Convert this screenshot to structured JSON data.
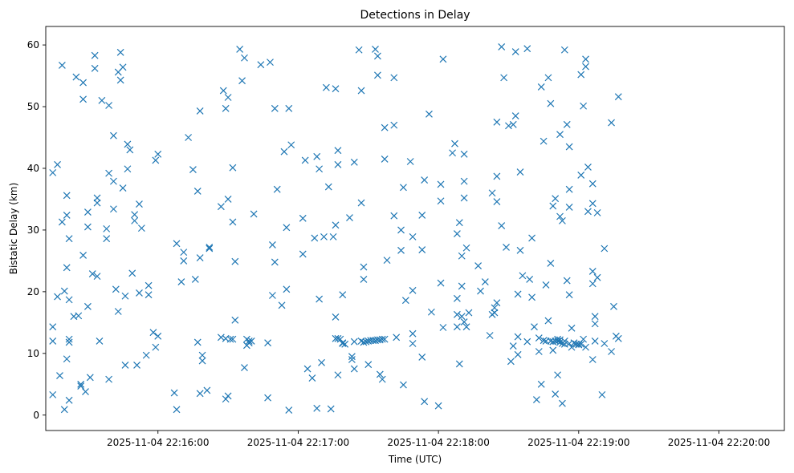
{
  "chart_data": {
    "type": "scatter",
    "title": "Detections in Delay",
    "xlabel": "Time (UTC)",
    "ylabel": "Bistatic Delay (km)",
    "x_start": "2025-11-04T22:15:15",
    "xlim": [
      "2025-11-04T22:15:12",
      "2025-11-04T22:20:28"
    ],
    "ylim": [
      -2.5,
      63.0
    ],
    "x_ticks": [
      "2025-11-04 22:16:00",
      "2025-11-04 22:17:00",
      "2025-11-04 22:18:00",
      "2025-11-04 22:19:00",
      "2025-11-04 22:20:00"
    ],
    "y_ticks": [
      0,
      10,
      20,
      30,
      40,
      50,
      60
    ],
    "marker": "x",
    "color": "#1f77b4",
    "grid": false,
    "points": [
      [
        0.0,
        3.3
      ],
      [
        0.0,
        12.0
      ],
      [
        0.0,
        14.3
      ],
      [
        0.0,
        39.3
      ],
      [
        2.0,
        40.6
      ],
      [
        2.0,
        19.2
      ],
      [
        3.0,
        6.4
      ],
      [
        4.0,
        56.7
      ],
      [
        4.0,
        31.3
      ],
      [
        5.0,
        20.1
      ],
      [
        5.0,
        0.9
      ],
      [
        6.0,
        35.6
      ],
      [
        6.0,
        32.4
      ],
      [
        6.0,
        23.9
      ],
      [
        6.0,
        9.1
      ],
      [
        7.0,
        12.3
      ],
      [
        7.0,
        11.8
      ],
      [
        7.0,
        2.4
      ],
      [
        7.0,
        28.6
      ],
      [
        7.0,
        18.7
      ],
      [
        9.0,
        16.0
      ],
      [
        10.0,
        54.8
      ],
      [
        11.0,
        16.1
      ],
      [
        12.0,
        4.7
      ],
      [
        12.0,
        5.0
      ],
      [
        13.0,
        53.9
      ],
      [
        13.0,
        51.2
      ],
      [
        13.0,
        25.9
      ],
      [
        14.0,
        3.8
      ],
      [
        15.0,
        32.9
      ],
      [
        15.0,
        30.5
      ],
      [
        15.0,
        17.6
      ],
      [
        16.0,
        6.1
      ],
      [
        17.0,
        22.9
      ],
      [
        18.0,
        58.3
      ],
      [
        18.0,
        56.2
      ],
      [
        19.0,
        35.2
      ],
      [
        19.0,
        34.4
      ],
      [
        19.0,
        22.5
      ],
      [
        20.0,
        12.0
      ],
      [
        21.0,
        51.0
      ],
      [
        23.0,
        30.2
      ],
      [
        23.0,
        28.6
      ],
      [
        24.0,
        39.2
      ],
      [
        24.0,
        50.2
      ],
      [
        24.0,
        5.8
      ],
      [
        26.0,
        45.3
      ],
      [
        26.0,
        37.9
      ],
      [
        27.0,
        20.4
      ],
      [
        26.0,
        33.4
      ],
      [
        28.0,
        55.6
      ],
      [
        28.0,
        16.8
      ],
      [
        29.0,
        54.3
      ],
      [
        30.0,
        56.4
      ],
      [
        29.0,
        58.8
      ],
      [
        30.0,
        36.8
      ],
      [
        31.0,
        19.3
      ],
      [
        31.0,
        8.1
      ],
      [
        32.0,
        39.9
      ],
      [
        32.0,
        43.9
      ],
      [
        33.0,
        43.0
      ],
      [
        34.0,
        23.0
      ],
      [
        35.0,
        31.5
      ],
      [
        35.0,
        32.5
      ],
      [
        36.0,
        8.1
      ],
      [
        37.0,
        34.2
      ],
      [
        37.0,
        19.8
      ],
      [
        38.0,
        30.3
      ],
      [
        40.0,
        9.7
      ],
      [
        41.0,
        21.0
      ],
      [
        41.0,
        19.5
      ],
      [
        43.0,
        13.4
      ],
      [
        44.0,
        41.3
      ],
      [
        44.0,
        11.0
      ],
      [
        45.0,
        42.3
      ],
      [
        45.0,
        12.8
      ],
      [
        52.0,
        3.6
      ],
      [
        53.0,
        0.9
      ],
      [
        53.0,
        27.8
      ],
      [
        55.0,
        21.6
      ],
      [
        56.0,
        26.4
      ],
      [
        56.0,
        25.0
      ],
      [
        58.0,
        45.0
      ],
      [
        60.0,
        39.8
      ],
      [
        61.0,
        22.0
      ],
      [
        62.0,
        36.3
      ],
      [
        62.0,
        11.8
      ],
      [
        63.0,
        49.3
      ],
      [
        63.0,
        25.5
      ],
      [
        63.0,
        3.5
      ],
      [
        64.0,
        8.8
      ],
      [
        64.0,
        9.7
      ],
      [
        66.0,
        4.0
      ],
      [
        67.0,
        27.0
      ],
      [
        67.0,
        27.2
      ],
      [
        72.0,
        33.8
      ],
      [
        72.0,
        12.6
      ],
      [
        73.0,
        52.6
      ],
      [
        74.0,
        49.7
      ],
      [
        74.0,
        12.4
      ],
      [
        74.0,
        2.6
      ],
      [
        75.0,
        51.5
      ],
      [
        75.0,
        35.0
      ],
      [
        75.0,
        3.1
      ],
      [
        76.0,
        12.3
      ],
      [
        77.0,
        12.3
      ],
      [
        77.0,
        40.1
      ],
      [
        77.0,
        31.3
      ],
      [
        78.0,
        24.9
      ],
      [
        78.0,
        15.4
      ],
      [
        80.0,
        59.3
      ],
      [
        81.0,
        54.2
      ],
      [
        82.0,
        57.9
      ],
      [
        82.0,
        7.7
      ],
      [
        83.0,
        12.3
      ],
      [
        83.0,
        11.3
      ],
      [
        84.0,
        12.0
      ],
      [
        84.0,
        11.7
      ],
      [
        85.0,
        12.0
      ],
      [
        86.0,
        32.6
      ],
      [
        89.0,
        56.8
      ],
      [
        92.0,
        11.7
      ],
      [
        92.0,
        2.8
      ],
      [
        93.0,
        57.2
      ],
      [
        94.0,
        27.6
      ],
      [
        94.0,
        19.4
      ],
      [
        95.0,
        49.7
      ],
      [
        95.0,
        24.8
      ],
      [
        96.0,
        36.6
      ],
      [
        98.0,
        17.8
      ],
      [
        99.0,
        42.7
      ],
      [
        100.0,
        20.4
      ],
      [
        100.0,
        30.4
      ],
      [
        101.0,
        0.8
      ],
      [
        101.0,
        49.7
      ],
      [
        102.0,
        43.8
      ],
      [
        107.0,
        26.1
      ],
      [
        107.0,
        31.9
      ],
      [
        108.0,
        41.3
      ],
      [
        109.0,
        7.5
      ],
      [
        111.0,
        6.0
      ],
      [
        112.0,
        28.7
      ],
      [
        113.0,
        1.1
      ],
      [
        113.0,
        41.9
      ],
      [
        114.0,
        39.9
      ],
      [
        114.0,
        18.8
      ],
      [
        115.0,
        8.5
      ],
      [
        116.0,
        28.9
      ],
      [
        117.0,
        53.1
      ],
      [
        118.0,
        37.0
      ],
      [
        119.0,
        1.0
      ],
      [
        120.0,
        28.9
      ],
      [
        121.0,
        52.9
      ],
      [
        121.0,
        30.8
      ],
      [
        121.0,
        15.9
      ],
      [
        121.0,
        12.4
      ],
      [
        122.0,
        12.4
      ],
      [
        122.0,
        40.6
      ],
      [
        122.0,
        42.9
      ],
      [
        122.0,
        6.5
      ],
      [
        123.0,
        12.3
      ],
      [
        124.0,
        11.7
      ],
      [
        124.0,
        11.6
      ],
      [
        124.0,
        19.5
      ],
      [
        125.0,
        11.5
      ],
      [
        127.0,
        32.0
      ],
      [
        128.0,
        9.0
      ],
      [
        128.0,
        9.5
      ],
      [
        129.0,
        41.0
      ],
      [
        129.0,
        7.5
      ],
      [
        129.0,
        11.9
      ],
      [
        131.0,
        59.2
      ],
      [
        132.0,
        34.4
      ],
      [
        132.0,
        12.0
      ],
      [
        132.0,
        52.6
      ],
      [
        133.0,
        11.8
      ],
      [
        133.0,
        22.0
      ],
      [
        133.0,
        24.0
      ],
      [
        134.0,
        11.9
      ],
      [
        135.0,
        12.0
      ],
      [
        135.0,
        8.2
      ],
      [
        136.0,
        12.1
      ],
      [
        137.0,
        12.1
      ],
      [
        138.0,
        12.1
      ],
      [
        138.0,
        59.3
      ],
      [
        139.0,
        12.2
      ],
      [
        139.0,
        55.1
      ],
      [
        139.0,
        58.2
      ],
      [
        140.0,
        12.2
      ],
      [
        140.0,
        6.6
      ],
      [
        141.0,
        12.3
      ],
      [
        141.0,
        5.8
      ],
      [
        142.0,
        41.5
      ],
      [
        142.0,
        12.3
      ],
      [
        142.0,
        46.6
      ],
      [
        143.0,
        25.1
      ],
      [
        146.0,
        54.7
      ],
      [
        146.0,
        47.0
      ],
      [
        146.0,
        32.3
      ],
      [
        147.0,
        12.6
      ],
      [
        149.0,
        26.7
      ],
      [
        149.0,
        30.0
      ],
      [
        150.0,
        36.9
      ],
      [
        150.0,
        4.9
      ],
      [
        151.0,
        18.6
      ],
      [
        153.0,
        41.1
      ],
      [
        154.0,
        28.9
      ],
      [
        154.0,
        20.2
      ],
      [
        154.0,
        13.2
      ],
      [
        154.0,
        11.6
      ],
      [
        158.0,
        32.4
      ],
      [
        158.0,
        26.8
      ],
      [
        158.0,
        9.4
      ],
      [
        159.0,
        38.1
      ],
      [
        159.0,
        2.2
      ],
      [
        161.0,
        48.8
      ],
      [
        162.0,
        16.7
      ],
      [
        165.0,
        1.5
      ],
      [
        166.0,
        37.4
      ],
      [
        166.0,
        34.7
      ],
      [
        166.0,
        21.4
      ],
      [
        167.0,
        57.7
      ],
      [
        167.0,
        14.2
      ],
      [
        171.0,
        42.5
      ],
      [
        172.0,
        44.0
      ],
      [
        173.0,
        29.4
      ],
      [
        173.0,
        18.9
      ],
      [
        173.0,
        16.3
      ],
      [
        173.0,
        14.3
      ],
      [
        174.0,
        31.2
      ],
      [
        174.0,
        8.3
      ],
      [
        175.0,
        25.8
      ],
      [
        175.0,
        20.9
      ],
      [
        175.0,
        16.0
      ],
      [
        176.0,
        35.2
      ],
      [
        176.0,
        37.9
      ],
      [
        176.0,
        42.3
      ],
      [
        176.0,
        15.1
      ],
      [
        177.0,
        14.3
      ],
      [
        177.0,
        27.1
      ],
      [
        178.0,
        16.6
      ],
      [
        182.0,
        24.2
      ],
      [
        183.0,
        20.1
      ],
      [
        185.0,
        21.6
      ],
      [
        187.0,
        12.9
      ],
      [
        188.0,
        16.3
      ],
      [
        188.0,
        36.0
      ],
      [
        189.0,
        16.6
      ],
      [
        189.0,
        17.4
      ],
      [
        190.0,
        47.5
      ],
      [
        190.0,
        34.6
      ],
      [
        190.0,
        18.2
      ],
      [
        190.0,
        38.7
      ],
      [
        192.0,
        59.7
      ],
      [
        192.0,
        30.7
      ],
      [
        193.0,
        54.7
      ],
      [
        194.0,
        27.2
      ],
      [
        195.0,
        46.9
      ],
      [
        196.0,
        8.7
      ],
      [
        197.0,
        47.1
      ],
      [
        197.0,
        11.2
      ],
      [
        198.0,
        48.5
      ],
      [
        198.0,
        58.9
      ],
      [
        199.0,
        12.7
      ],
      [
        199.0,
        19.6
      ],
      [
        199.0,
        9.8
      ],
      [
        200.0,
        39.4
      ],
      [
        200.0,
        26.7
      ],
      [
        201.0,
        22.6
      ],
      [
        203.0,
        59.4
      ],
      [
        203.0,
        11.9
      ],
      [
        204.0,
        22.0
      ],
      [
        205.0,
        19.1
      ],
      [
        205.0,
        28.7
      ],
      [
        206.0,
        14.3
      ],
      [
        207.0,
        2.5
      ],
      [
        208.0,
        12.5
      ],
      [
        208.0,
        10.3
      ],
      [
        209.0,
        53.2
      ],
      [
        209.0,
        5.0
      ],
      [
        210.0,
        12.1
      ],
      [
        210.0,
        44.4
      ],
      [
        211.0,
        12.0
      ],
      [
        211.0,
        21.1
      ],
      [
        212.0,
        54.7
      ],
      [
        212.0,
        15.3
      ],
      [
        213.0,
        50.5
      ],
      [
        213.0,
        24.6
      ],
      [
        213.0,
        12.0
      ],
      [
        214.0,
        11.9
      ],
      [
        214.0,
        10.5
      ],
      [
        214.0,
        33.9
      ],
      [
        215.0,
        35.1
      ],
      [
        215.0,
        12.0
      ],
      [
        215.0,
        3.4
      ],
      [
        216.0,
        12.3
      ],
      [
        216.0,
        6.5
      ],
      [
        216.0,
        12.0
      ],
      [
        217.0,
        12.2
      ],
      [
        217.0,
        11.8
      ],
      [
        217.0,
        45.5
      ],
      [
        217.0,
        32.2
      ],
      [
        218.0,
        31.5
      ],
      [
        218.0,
        11.6
      ],
      [
        218.0,
        1.9
      ],
      [
        219.0,
        59.2
      ],
      [
        219.0,
        12.0
      ],
      [
        219.0,
        11.5
      ],
      [
        220.0,
        47.1
      ],
      [
        220.0,
        21.8
      ],
      [
        221.0,
        11.6
      ],
      [
        221.0,
        43.5
      ],
      [
        221.0,
        36.6
      ],
      [
        221.0,
        33.7
      ],
      [
        221.0,
        19.5
      ],
      [
        222.0,
        14.1
      ],
      [
        222.0,
        11.0
      ],
      [
        223.0,
        11.7
      ],
      [
        224.0,
        11.5
      ],
      [
        225.0,
        11.5
      ],
      [
        225.0,
        11.4
      ],
      [
        226.0,
        11.5
      ],
      [
        226.0,
        38.9
      ],
      [
        226.0,
        55.2
      ],
      [
        227.0,
        50.1
      ],
      [
        227.0,
        12.3
      ],
      [
        228.0,
        56.5
      ],
      [
        228.0,
        57.7
      ],
      [
        228.0,
        11.0
      ],
      [
        229.0,
        40.2
      ],
      [
        229.0,
        33.0
      ],
      [
        231.0,
        9.0
      ],
      [
        231.0,
        37.5
      ],
      [
        231.0,
        34.3
      ],
      [
        231.0,
        23.3
      ],
      [
        231.0,
        21.3
      ],
      [
        232.0,
        12.0
      ],
      [
        232.0,
        16.0
      ],
      [
        233.0,
        32.8
      ],
      [
        232.0,
        14.8
      ],
      [
        233.0,
        22.3
      ],
      [
        235.0,
        3.3
      ],
      [
        236.0,
        11.6
      ],
      [
        236.0,
        27.0
      ],
      [
        239.0,
        10.3
      ],
      [
        239.0,
        47.4
      ],
      [
        240.0,
        17.6
      ],
      [
        241.0,
        12.8
      ],
      [
        242.0,
        12.4
      ],
      [
        242.0,
        51.6
      ]
    ]
  }
}
